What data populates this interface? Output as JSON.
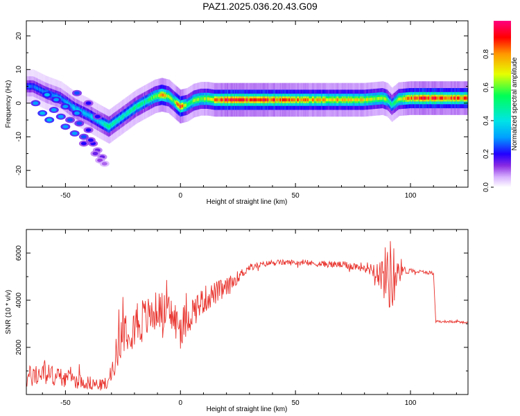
{
  "title": "PAZ1.2025.036.20.43.G09",
  "colors": {
    "snr_line": "#e8302a",
    "colormap": [
      "#ffffff",
      "#d9b3ff",
      "#8a2be2",
      "#2200ff",
      "#00a0ff",
      "#00e5e5",
      "#00ff55",
      "#e6ff00",
      "#ff9900",
      "#ff0000",
      "#ff0080"
    ]
  },
  "chart_data": [
    {
      "type": "heatmap",
      "title": "PAZ1.2025.036.20.43.G09",
      "xlabel": "Height of straight line (km)",
      "ylabel": "Frequency (Hz)",
      "xlim": [
        -67,
        125
      ],
      "ylim": [
        -25,
        24.5
      ],
      "xticks": [
        -50,
        0,
        50,
        100
      ],
      "yticks": [
        -20,
        -10,
        0,
        10,
        20
      ],
      "colorbar": {
        "label": "Normalized spectral amplitude",
        "range": [
          0,
          1
        ],
        "ticks": [
          "0.0",
          "0.2",
          "0.4",
          "0.6",
          "0.8"
        ]
      },
      "ridge": {
        "x": [
          -64,
          -58,
          -52,
          -46,
          -40,
          -35,
          -31,
          -27,
          -23,
          -19,
          -15,
          -11,
          -8,
          -5,
          -3,
          0,
          3,
          6,
          9,
          12,
          15,
          20,
          30,
          40,
          50,
          60,
          70,
          80,
          85,
          88,
          90,
          92,
          95,
          100,
          110,
          125
        ],
        "y": [
          5,
          3,
          1.5,
          -1.5,
          -3.5,
          -5.5,
          -7,
          -5,
          -3,
          -1,
          0.5,
          2,
          2.5,
          2,
          0.8,
          -1,
          -0.5,
          0.8,
          1.3,
          1.3,
          1,
          1,
          1,
          1,
          1,
          1,
          1,
          1,
          1.3,
          1.5,
          1,
          -0.5,
          1.2,
          1.5,
          1.5,
          1.5
        ],
        "amp": [
          0.25,
          0.3,
          0.3,
          0.35,
          0.35,
          0.4,
          0.5,
          0.45,
          0.45,
          0.5,
          0.5,
          0.6,
          0.75,
          0.7,
          0.55,
          0.95,
          0.55,
          0.6,
          0.6,
          0.7,
          0.8,
          0.9,
          0.9,
          0.85,
          0.8,
          0.75,
          0.75,
          0.7,
          0.6,
          0.7,
          0.6,
          0.45,
          0.6,
          0.85,
          0.9,
          0.85
        ]
      },
      "scatter_blobs": {
        "x": [
          -63,
          -60,
          -57,
          -55,
          -52,
          -50,
          -48,
          -46,
          -44,
          -42,
          -40,
          -38,
          -36,
          -34,
          -58,
          -54,
          -50,
          -45,
          -42,
          -39,
          -37,
          -35,
          -33,
          -45,
          -40,
          -36
        ],
        "y": [
          0,
          -3,
          -5,
          -2,
          -4,
          -7,
          -5,
          -9,
          -6,
          -10,
          -8,
          -12,
          -14,
          -16,
          2.5,
          1,
          -1,
          -3,
          -12,
          -11,
          -15,
          -17,
          -18,
          3,
          0,
          -4
        ],
        "amp": [
          0.3,
          0.35,
          0.35,
          0.3,
          0.3,
          0.3,
          0.25,
          0.3,
          0.25,
          0.25,
          0.2,
          0.2,
          0.15,
          0.15,
          0.35,
          0.3,
          0.3,
          0.3,
          0.2,
          0.2,
          0.15,
          0.12,
          0.1,
          0.25,
          0.2,
          0.2
        ]
      }
    },
    {
      "type": "line",
      "xlabel": "Height of straight line (km)",
      "ylabel": "SNR (10 * v/v)",
      "xlim": [
        -67,
        125
      ],
      "ylim": [
        0,
        7000
      ],
      "xticks": [
        -50,
        0,
        50,
        100
      ],
      "yticks": [
        2000,
        4000,
        6000
      ],
      "series": [
        {
          "envelope_x": [
            -67,
            -60,
            -55,
            -50,
            -45,
            -40,
            -35,
            -31,
            -28,
            -25,
            -22,
            -18,
            -15,
            -10,
            -5,
            0,
            5,
            10,
            15,
            20,
            25,
            30,
            35,
            40,
            50,
            60,
            70,
            80,
            85,
            88,
            90,
            92,
            95,
            97,
            100,
            105,
            110,
            111,
            115,
            120,
            125
          ],
          "mean": [
            700,
            900,
            800,
            700,
            600,
            500,
            400,
            500,
            1700,
            2800,
            3000,
            3100,
            3200,
            3600,
            3500,
            2800,
            3500,
            4000,
            4300,
            4500,
            5000,
            5400,
            5500,
            5600,
            5600,
            5550,
            5500,
            5400,
            5300,
            5000,
            5200,
            5000,
            5400,
            5250,
            5250,
            5200,
            5150,
            3100,
            3100,
            3080,
            3050
          ],
          "noise": [
            500,
            500,
            450,
            400,
            350,
            300,
            250,
            300,
            700,
            1000,
            1100,
            1100,
            900,
            800,
            800,
            900,
            700,
            600,
            500,
            450,
            250,
            150,
            120,
            120,
            120,
            130,
            150,
            200,
            400,
            900,
            1500,
            1600,
            700,
            200,
            100,
            80,
            80,
            60,
            50,
            50,
            50
          ]
        }
      ]
    }
  ]
}
